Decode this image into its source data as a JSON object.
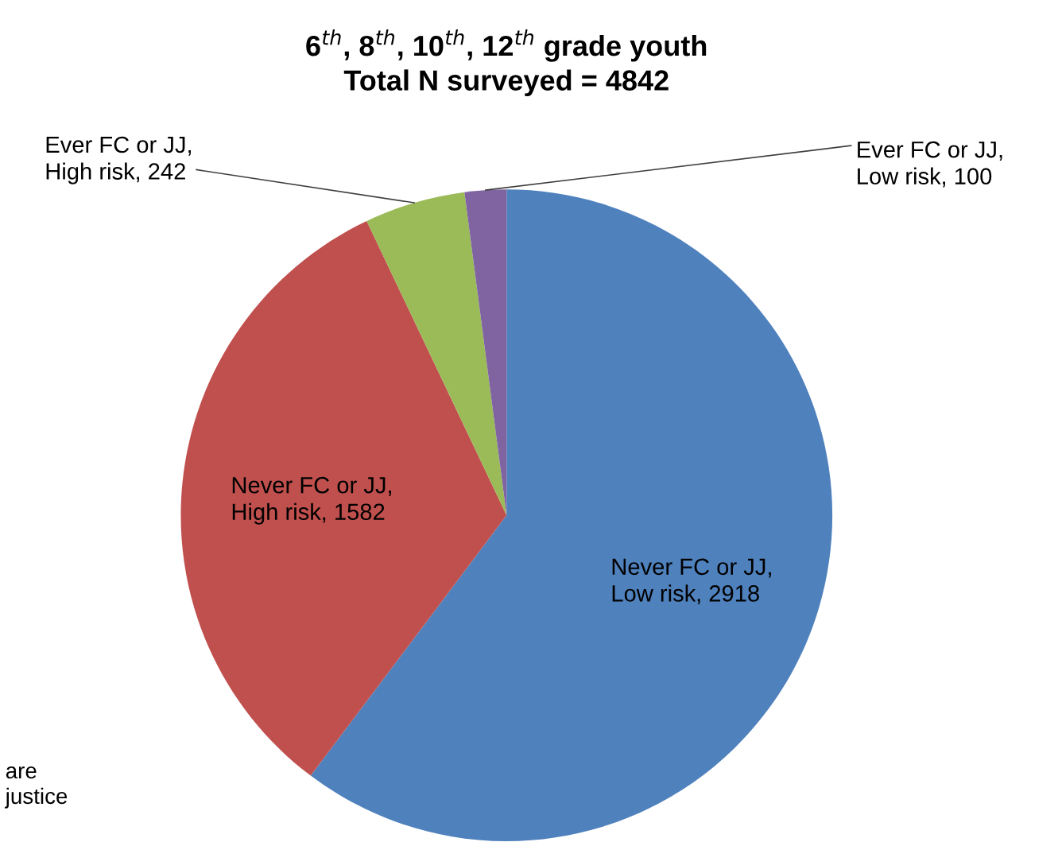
{
  "chart_data": {
    "type": "pie",
    "title": "6$^{th}$, 8$^{th}$, 10$^{th}$, 12$^{th}$ grade youth\nTotal N surveyed = 4842",
    "categories": [
      "Never FC or JJ,\nLow risk",
      "Never FC or JJ,\nHigh risk",
      "Ever FC or JJ,\nHigh risk",
      "Ever FC or JJ,\nLow risk"
    ],
    "values": [
      2918,
      1582,
      242,
      100
    ],
    "colors": [
      "#4f81bd",
      "#c0504d",
      "#9bbb59",
      "#8064a2"
    ],
    "value_labels": [
      ", 2918",
      ", 1582",
      ", 242",
      ", 100"
    ],
    "legend": false,
    "annotations": [
      "are\njustice"
    ]
  }
}
